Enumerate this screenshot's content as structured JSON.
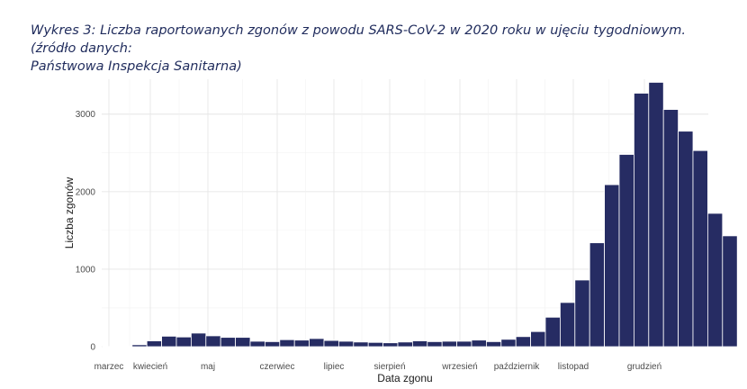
{
  "caption": {
    "line1": "Wykres 3: Liczba raportowanych zgonów z powodu SARS-CoV-2 w 2020 roku w ujęciu tygodniowym. (źródło danych:",
    "line2": "Państwowa Inspekcja Sanitarna)"
  },
  "chart_data": {
    "type": "bar",
    "title": "Wykres 3: Liczba raportowanych zgonów z powodu SARS-CoV-2 w 2020 roku w ujęciu tygodniowym. (źródło danych: Państwowa Inspekcja Sanitarna)",
    "xlabel": "Data zgonu",
    "ylabel": "Liczba zgonów",
    "ylim": [
      0,
      3450
    ],
    "yticks": [
      0,
      1000,
      2000,
      3000
    ],
    "xtick_labels": [
      "marzec",
      "kwiecień",
      "maj",
      "czerwiec",
      "lipiec",
      "sierpień",
      "wrzesień",
      "październik",
      "listopad",
      "grudzień"
    ],
    "grid": true,
    "bar_color": "#262c63",
    "values": [
      2,
      5,
      25,
      75,
      135,
      125,
      175,
      140,
      120,
      120,
      70,
      65,
      90,
      85,
      105,
      80,
      70,
      60,
      55,
      50,
      60,
      75,
      65,
      70,
      70,
      85,
      65,
      95,
      130,
      195,
      380,
      570,
      860,
      1340,
      2090,
      2480,
      3270,
      3410,
      3060,
      2780,
      2530,
      1720,
      1430
    ]
  }
}
